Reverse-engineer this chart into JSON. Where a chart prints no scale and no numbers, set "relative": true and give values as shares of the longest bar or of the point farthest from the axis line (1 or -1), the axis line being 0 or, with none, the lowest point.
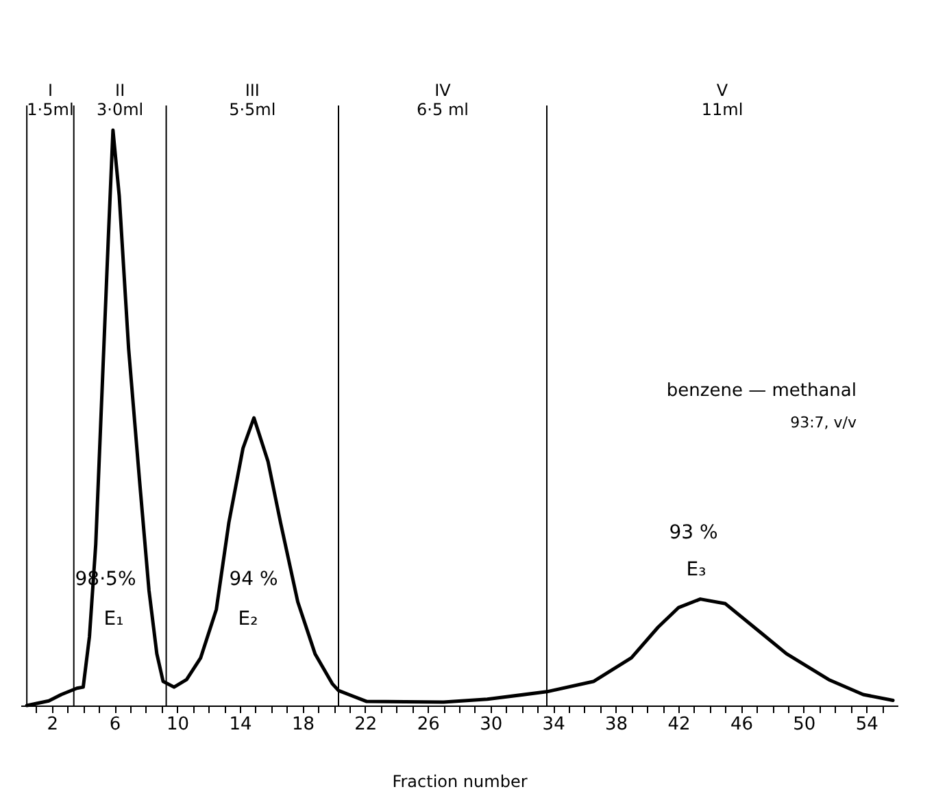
{
  "chart_data": {
    "type": "line",
    "relative": true,
    "xlabel": "Fraction number",
    "xlim": [
      0,
      56
    ],
    "xticks": [
      {
        "value": 1,
        "label": null
      },
      2,
      {
        "value": 3,
        "label": null
      },
      {
        "value": 4,
        "label": null
      },
      {
        "value": 5,
        "label": null
      },
      6,
      {
        "value": 7,
        "label": null
      },
      {
        "value": 8,
        "label": null
      },
      {
        "value": 9,
        "label": null
      },
      10,
      {
        "value": 11,
        "label": null
      },
      {
        "value": 12,
        "label": null
      },
      {
        "value": 13,
        "label": null
      },
      14,
      {
        "value": 15,
        "label": null
      },
      {
        "value": 16,
        "label": null
      },
      {
        "value": 17,
        "label": null
      },
      18,
      {
        "value": 19,
        "label": null
      },
      {
        "value": 20,
        "label": null
      },
      {
        "value": 21,
        "label": null
      },
      22,
      {
        "value": 23,
        "label": null
      },
      {
        "value": 24,
        "label": null
      },
      {
        "value": 25,
        "label": null
      },
      26,
      {
        "value": 27,
        "label": null
      },
      {
        "value": 28,
        "label": null
      },
      {
        "value": 29,
        "label": null
      },
      30,
      {
        "value": 31,
        "label": null
      },
      {
        "value": 32,
        "label": null
      },
      {
        "value": 33,
        "label": null
      },
      34,
      {
        "value": 35,
        "label": null
      },
      {
        "value": 36,
        "label": null
      },
      {
        "value": 37,
        "label": null
      },
      38,
      {
        "value": 39,
        "label": null
      },
      {
        "value": 40,
        "label": null
      },
      {
        "value": 41,
        "label": null
      },
      42,
      {
        "value": 43,
        "label": null
      },
      {
        "value": 44,
        "label": null
      },
      {
        "value": 45,
        "label": null
      },
      46,
      {
        "value": 47,
        "label": null
      },
      {
        "value": 48,
        "label": null
      },
      {
        "value": 49,
        "label": null
      },
      50,
      {
        "value": 51,
        "label": null
      },
      {
        "value": 52,
        "label": null
      },
      {
        "value": 53,
        "label": null
      },
      54,
      {
        "value": 55,
        "label": null
      }
    ],
    "grid": false,
    "marker": "none",
    "line_style": "solid",
    "series": [
      {
        "color": "#000000",
        "x": [
          0.4,
          1.8,
          2.6,
          3.6,
          4.0,
          4.4,
          4.8,
          5.2,
          5.6,
          5.9,
          6.3,
          6.9,
          7.6,
          8.2,
          8.7,
          9.1,
          9.8,
          10.6,
          11.5,
          12.5,
          13.3,
          14.2,
          14.9,
          15.8,
          16.6,
          17.7,
          18.8,
          19.9,
          20.3,
          22.1,
          27.0,
          29.8,
          33.6,
          36.6,
          39.0,
          40.7,
          42.0,
          43.4,
          45.0,
          47.2,
          48.9,
          51.6,
          53.8,
          55.7
        ],
        "values": [
          0,
          0.008,
          0.019,
          0.03,
          0.032,
          0.12,
          0.28,
          0.545,
          0.81,
          1.0,
          0.886,
          0.62,
          0.39,
          0.2,
          0.09,
          0.042,
          0.032,
          0.045,
          0.083,
          0.167,
          0.318,
          0.447,
          0.5,
          0.424,
          0.318,
          0.18,
          0.09,
          0.038,
          0.026,
          0.007,
          0.006,
          0.011,
          0.024,
          0.042,
          0.083,
          0.136,
          0.17,
          0.185,
          0.177,
          0.128,
          0.09,
          0.045,
          0.019,
          0.009
        ]
      }
    ],
    "ref_lines": [
      {
        "axis": "x",
        "value": 0.4
      },
      {
        "axis": "x",
        "value": 3.4
      },
      {
        "axis": "x",
        "value": 9.3
      },
      {
        "axis": "x",
        "value": 20.3
      },
      {
        "axis": "x",
        "value": 33.6
      }
    ],
    "annotations": [
      "I\n1·5ml",
      "II\n3·0ml",
      "III\n5·5ml",
      "IV\n6·5 ml",
      "V\n11ml",
      "98·5%",
      "E₁",
      "94 %",
      "E₂",
      "93 %",
      "E₃",
      "benzene — methanal",
      "93:7, v/v"
    ]
  }
}
